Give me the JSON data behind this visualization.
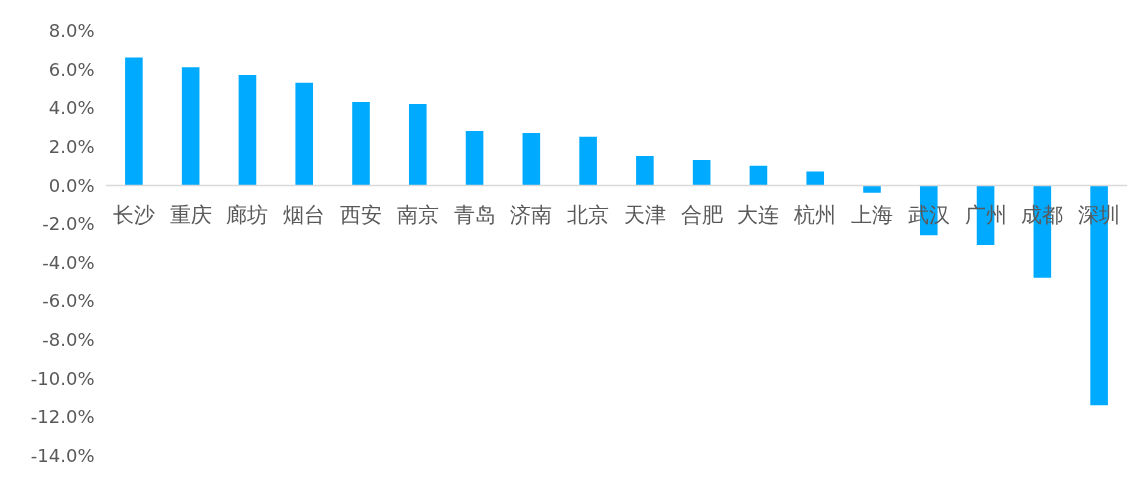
{
  "chart_data": {
    "type": "bar",
    "categories": [
      "长沙",
      "重庆",
      "廊坊",
      "烟台",
      "西安",
      "南京",
      "青岛",
      "济南",
      "北京",
      "天津",
      "合肥",
      "大连",
      "杭州",
      "上海",
      "武汉",
      "广州",
      "成都",
      "深圳"
    ],
    "values": [
      6.6,
      6.1,
      5.7,
      5.3,
      4.3,
      4.2,
      2.8,
      2.7,
      2.5,
      1.5,
      1.3,
      1.0,
      0.7,
      -0.4,
      -2.6,
      -3.1,
      -4.8,
      -11.4
    ],
    "color": "#00aaff",
    "ylim": [
      -14,
      8
    ],
    "yticks": [
      {
        "value": 8,
        "label": "8.0%"
      },
      {
        "value": 6,
        "label": "6.0%"
      },
      {
        "value": 4,
        "label": "4.0%"
      },
      {
        "value": 2,
        "label": "2.0%"
      },
      {
        "value": 0,
        "label": "0.0%"
      },
      {
        "value": -2,
        "label": "-2.0%"
      },
      {
        "value": -4,
        "label": "-4.0%"
      },
      {
        "value": -6,
        "label": "-6.0%"
      },
      {
        "value": -8,
        "label": "-8.0%"
      },
      {
        "value": -10,
        "label": "-10.0%"
      },
      {
        "value": -12,
        "label": "-12.0%"
      },
      {
        "value": -14,
        "label": "-14.0%"
      }
    ],
    "grid": false
  }
}
